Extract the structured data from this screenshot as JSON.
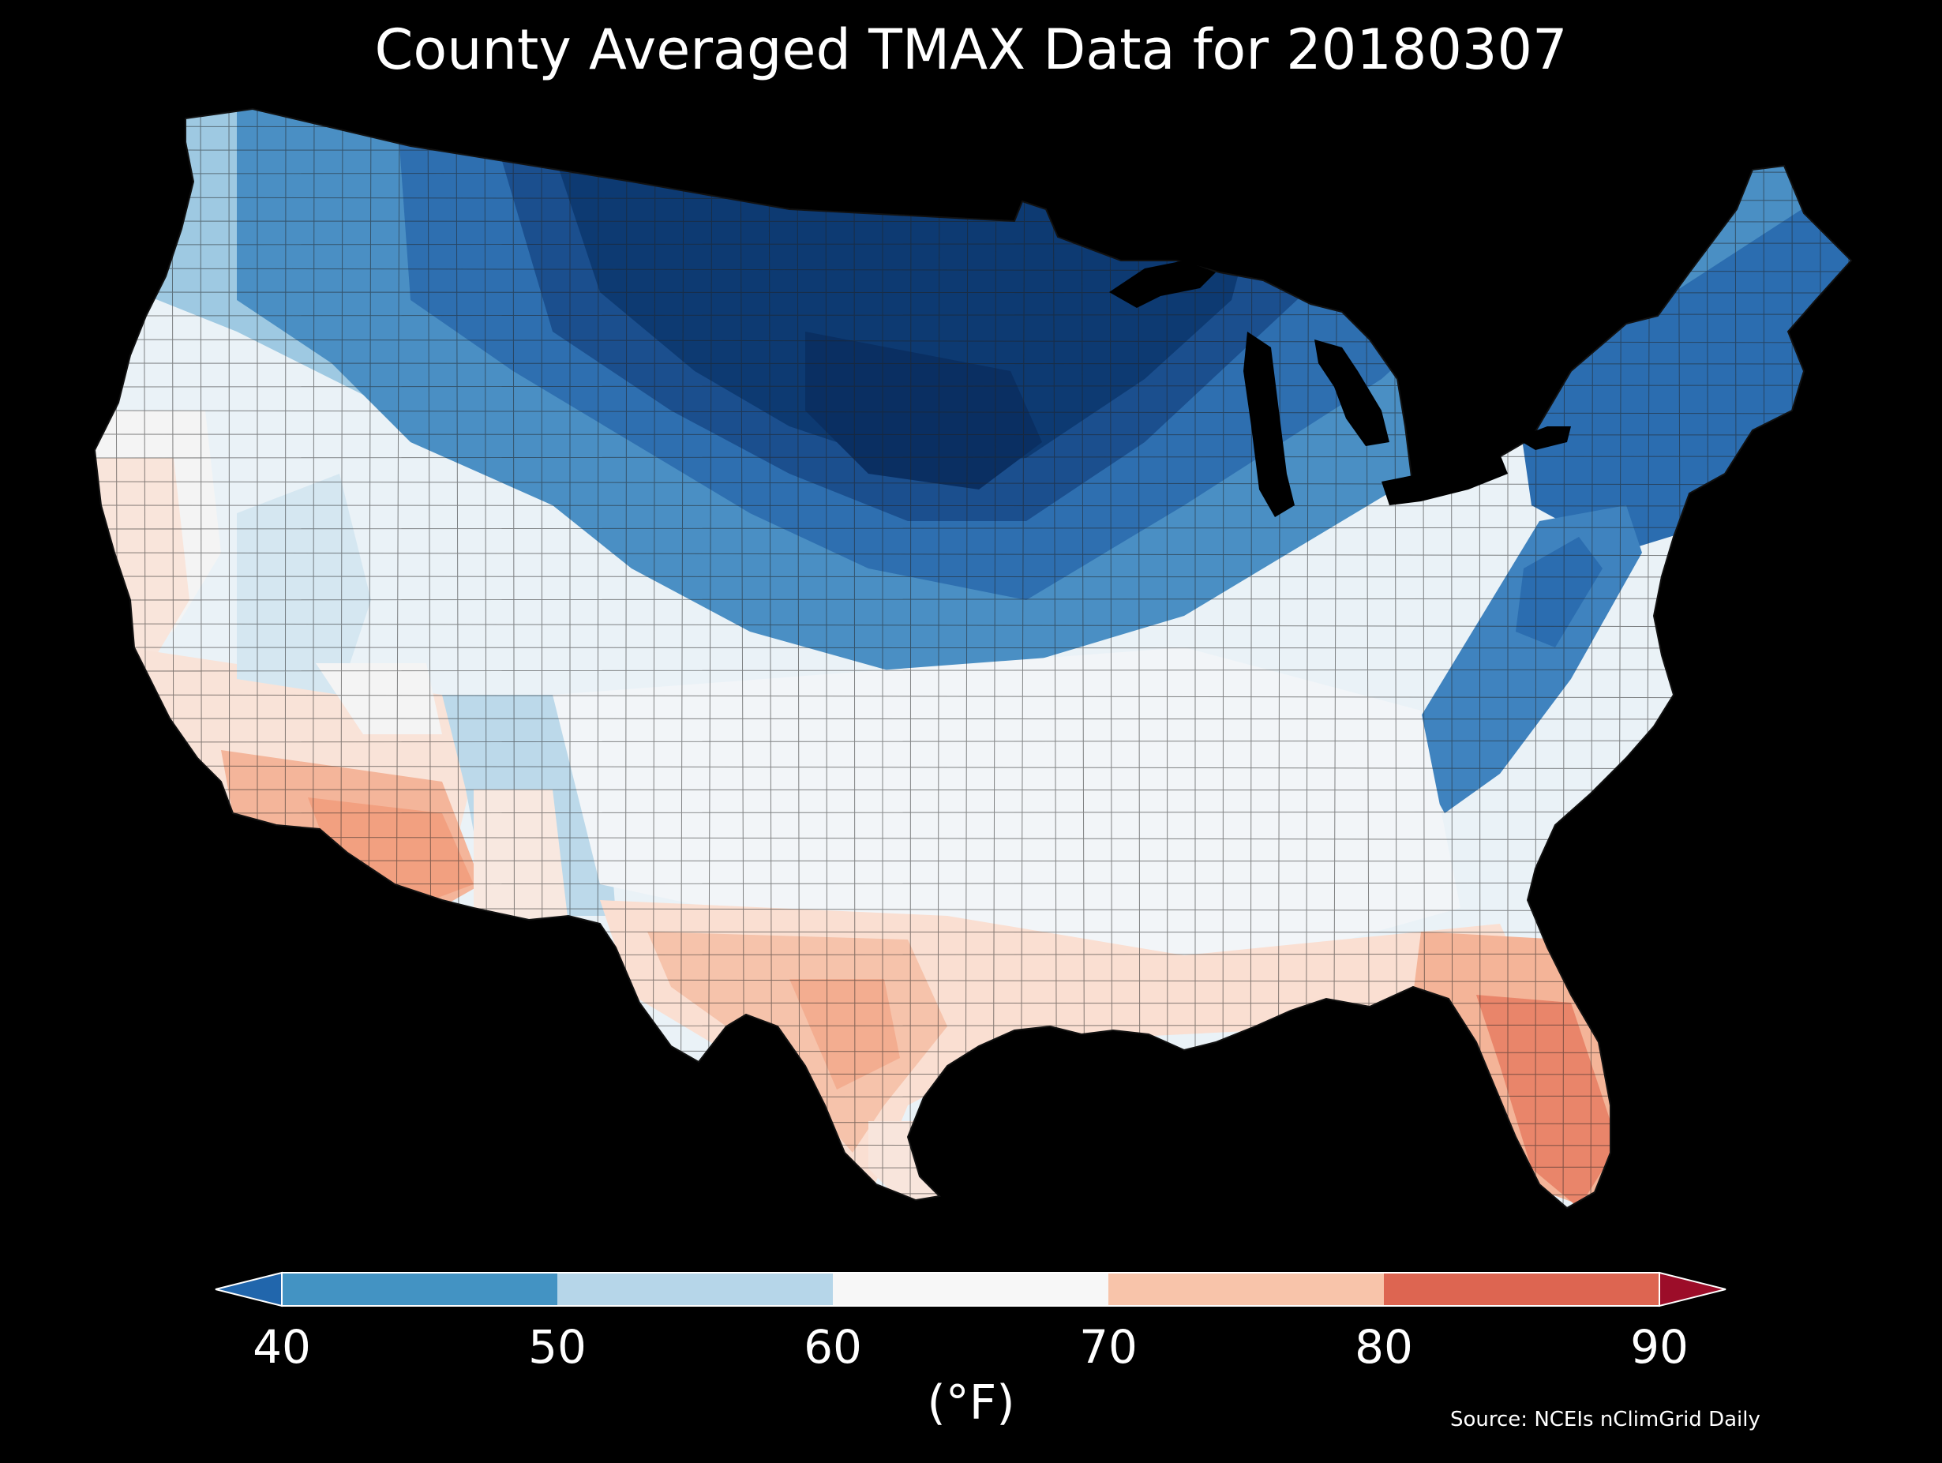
{
  "title": "County Averaged TMAX Data for 20180307",
  "colorbar": {
    "unit_label": "(°F)",
    "ticks": [
      "40",
      "50",
      "60",
      "70",
      "80",
      "90"
    ],
    "bins": [
      {
        "range": "<40",
        "color": "#2166ac"
      },
      {
        "range": "40-50",
        "color": "#4393c3"
      },
      {
        "range": "50-60",
        "color": "#b6d6e9"
      },
      {
        "range": "60-70",
        "color": "#f7f7f7"
      },
      {
        "range": "70-80",
        "color": "#f8c4aa"
      },
      {
        "range": "80-90",
        "color": "#dd6551"
      },
      {
        "range": ">90",
        "color": "#9c0d29"
      }
    ]
  },
  "source": "Source: NCEIs nClimGrid Daily",
  "map": {
    "region": "Contiguous United States",
    "variable": "TMAX",
    "background_color": "#000000",
    "pattern": "coldest across the northern Plains and upper Midwest, warmest in Florida, south Texas and southern Arizona"
  }
}
